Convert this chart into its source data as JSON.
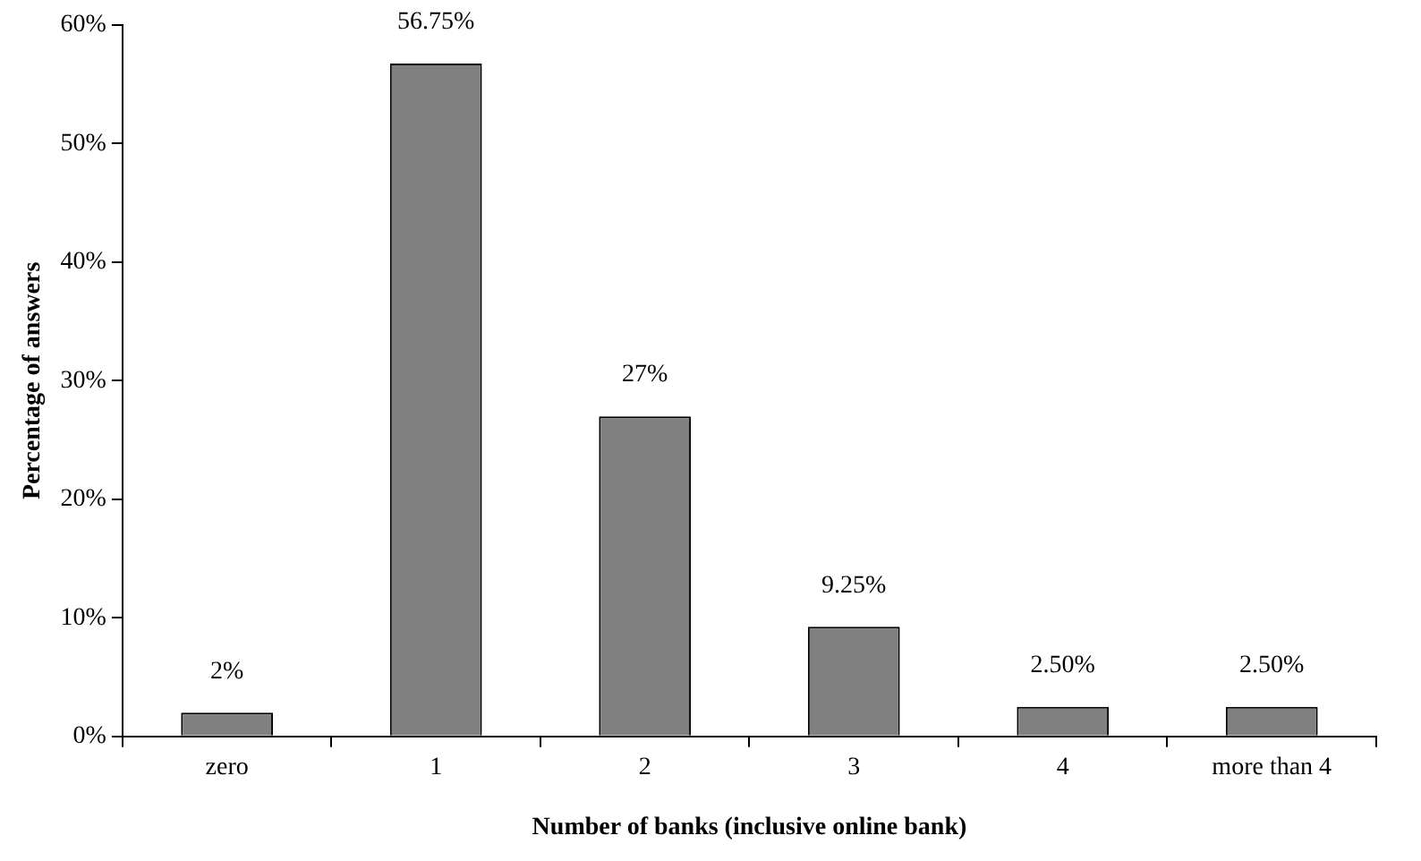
{
  "chart_data": {
    "type": "bar",
    "xlabel": "Number of banks (inclusive online bank)",
    "ylabel": "Percentage of answers",
    "categories": [
      "zero",
      "1",
      "2",
      "3",
      "4",
      "more than 4"
    ],
    "values": [
      2,
      56.75,
      27,
      9.25,
      2.5,
      2.5
    ],
    "value_labels": [
      "2%",
      "56.75%",
      "27%",
      "9.25%",
      "2.50%",
      "2.50%"
    ],
    "color": "#808080",
    "ylim": [
      0,
      60
    ],
    "yticks": [
      {
        "value": 0,
        "label": "0%"
      },
      {
        "value": 10,
        "label": "10%"
      },
      {
        "value": 20,
        "label": "20%"
      },
      {
        "value": 30,
        "label": "30%"
      },
      {
        "value": 40,
        "label": "40%"
      },
      {
        "value": 50,
        "label": "50%"
      },
      {
        "value": 60,
        "label": "60%"
      }
    ],
    "grid": false,
    "legend": false
  }
}
